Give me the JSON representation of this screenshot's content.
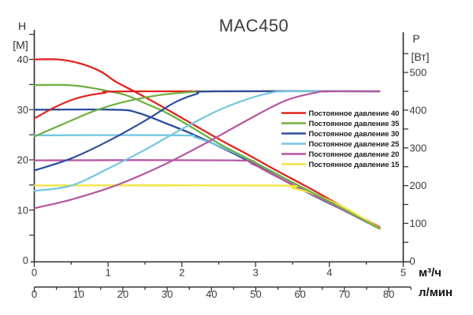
{
  "title": "MAC450",
  "chart_data": {
    "type": "line",
    "title": "MAC450",
    "axes": {
      "left": {
        "name": "H",
        "unit": "[M]",
        "tick_labels": [
          0,
          10,
          20,
          30,
          40
        ],
        "minor_step": 5,
        "range": [
          0,
          45
        ]
      },
      "right": {
        "name": "P",
        "unit": "[Вт]",
        "tick_labels": [
          0,
          100,
          200,
          300,
          400,
          500
        ],
        "minor_step": 50,
        "range": [
          0,
          550
        ]
      },
      "bottom_primary": {
        "unit": "м³/ч",
        "tick_labels": [
          0,
          1,
          2,
          3,
          4,
          5
        ],
        "minor_step": 0.5,
        "range": [
          0,
          5
        ]
      },
      "bottom_secondary": {
        "unit": "л/мин",
        "tick_labels": [
          0,
          10,
          20,
          30,
          40,
          50,
          60,
          70,
          80
        ],
        "minor_step": 5,
        "range": [
          0,
          85
        ]
      }
    },
    "legend_position": "right-middle",
    "max_power_w": 450,
    "max_flow_m3h": 4.68,
    "series": [
      {
        "label": "Постоянное давление 40",
        "color": "#e02421",
        "pressure_m": 40,
        "head_curve": [
          [
            0,
            40
          ],
          [
            0.32,
            40
          ],
          [
            0.62,
            39.2
          ],
          [
            0.9,
            37.6
          ],
          [
            1.1,
            35.6
          ],
          [
            1.4,
            33.3
          ],
          [
            1.72,
            30.7
          ],
          [
            2.1,
            27.5
          ],
          [
            2.53,
            23.9
          ],
          [
            2.9,
            21.0
          ],
          [
            3.28,
            17.9
          ],
          [
            3.7,
            14.6
          ],
          [
            4.1,
            11.3
          ],
          [
            4.4,
            8.8
          ],
          [
            4.68,
            6.6
          ]
        ],
        "power_curve": [
          [
            0,
            378
          ],
          [
            0.3,
            410
          ],
          [
            0.6,
            433
          ],
          [
            0.95,
            446
          ],
          [
            1.3,
            450
          ],
          [
            4.68,
            450
          ]
        ]
      },
      {
        "label": "Постоянное давление 35",
        "color": "#70b041",
        "pressure_m": 35,
        "head_curve": [
          [
            0,
            34.9
          ],
          [
            0.45,
            34.9
          ],
          [
            0.75,
            34.4
          ],
          [
            1.0,
            33.7
          ],
          [
            1.24,
            32.9
          ],
          [
            1.5,
            31.3
          ],
          [
            1.8,
            29.3
          ],
          [
            2.1,
            26.8
          ],
          [
            2.53,
            23.0
          ],
          [
            2.9,
            20.2
          ],
          [
            3.28,
            17.2
          ],
          [
            3.7,
            14.0
          ],
          [
            4.1,
            10.9
          ],
          [
            4.4,
            8.5
          ],
          [
            4.68,
            6.3
          ]
        ],
        "power_curve": [
          [
            0,
            330
          ],
          [
            0.4,
            364
          ],
          [
            0.8,
            397
          ],
          [
            1.2,
            421
          ],
          [
            1.7,
            440
          ],
          [
            2.2,
            449
          ],
          [
            2.5,
            450
          ],
          [
            4.68,
            450
          ]
        ]
      },
      {
        "label": "Постоянное давление 30",
        "color": "#2d4e9e",
        "pressure_m": 30,
        "head_curve": [
          [
            0,
            30
          ],
          [
            1.1,
            30
          ],
          [
            1.4,
            29.4
          ],
          [
            1.78,
            27.3
          ],
          [
            2.1,
            25.4
          ],
          [
            2.5,
            22.7
          ],
          [
            2.9,
            19.8
          ],
          [
            3.3,
            16.6
          ],
          [
            3.7,
            13.5
          ],
          [
            4.1,
            10.6
          ],
          [
            4.4,
            8.4
          ],
          [
            4.68,
            6.3
          ]
        ],
        "power_curve": [
          [
            0,
            240
          ],
          [
            0.5,
            272
          ],
          [
            1.0,
            318
          ],
          [
            1.5,
            372
          ],
          [
            1.9,
            420
          ],
          [
            2.2,
            443
          ],
          [
            2.45,
            450
          ],
          [
            4.68,
            450
          ]
        ]
      },
      {
        "label": "Постоянное давление 25",
        "color": "#74c7e0",
        "pressure_m": 25,
        "head_curve": [
          [
            0,
            24.9
          ],
          [
            1.95,
            24.9
          ],
          [
            2.2,
            24.4
          ],
          [
            2.64,
            21.9
          ],
          [
            3.0,
            19.4
          ],
          [
            3.4,
            16.3
          ],
          [
            3.8,
            13.0
          ],
          [
            4.15,
            10.3
          ],
          [
            4.45,
            8.0
          ],
          [
            4.68,
            6.3
          ]
        ],
        "power_curve": [
          [
            0,
            186
          ],
          [
            0.5,
            200
          ],
          [
            1.0,
            245
          ],
          [
            1.5,
            295
          ],
          [
            2.0,
            350
          ],
          [
            2.5,
            400
          ],
          [
            2.9,
            430
          ],
          [
            3.2,
            446
          ],
          [
            3.45,
            450
          ],
          [
            4.68,
            450
          ]
        ]
      },
      {
        "label": "Постоянное давление 20",
        "color": "#b457a3",
        "pressure_m": 20,
        "head_curve": [
          [
            0,
            19.9
          ],
          [
            2.7,
            19.9
          ],
          [
            2.95,
            19.2
          ],
          [
            3.2,
            17.3
          ],
          [
            3.5,
            15.1
          ],
          [
            3.85,
            12.5
          ],
          [
            4.2,
            9.9
          ],
          [
            4.45,
            8.0
          ],
          [
            4.68,
            6.3
          ]
        ],
        "power_curve": [
          [
            0,
            140
          ],
          [
            0.5,
            163
          ],
          [
            1.1,
            200
          ],
          [
            1.7,
            250
          ],
          [
            2.3,
            310
          ],
          [
            2.9,
            375
          ],
          [
            3.4,
            425
          ],
          [
            3.8,
            446
          ],
          [
            4.0,
            450
          ],
          [
            4.68,
            450
          ]
        ]
      },
      {
        "label": "Постоянное давление 15",
        "color": "#f2e43d",
        "pressure_m": 15,
        "head_curve": [
          [
            0,
            14.9
          ],
          [
            3.25,
            14.9
          ],
          [
            3.5,
            14.4
          ],
          [
            3.75,
            13.4
          ],
          [
            4.0,
            11.9
          ],
          [
            4.25,
            10.1
          ],
          [
            4.45,
            8.4
          ],
          [
            4.68,
            6.4
          ]
        ],
        "power_curve": null
      }
    ]
  }
}
